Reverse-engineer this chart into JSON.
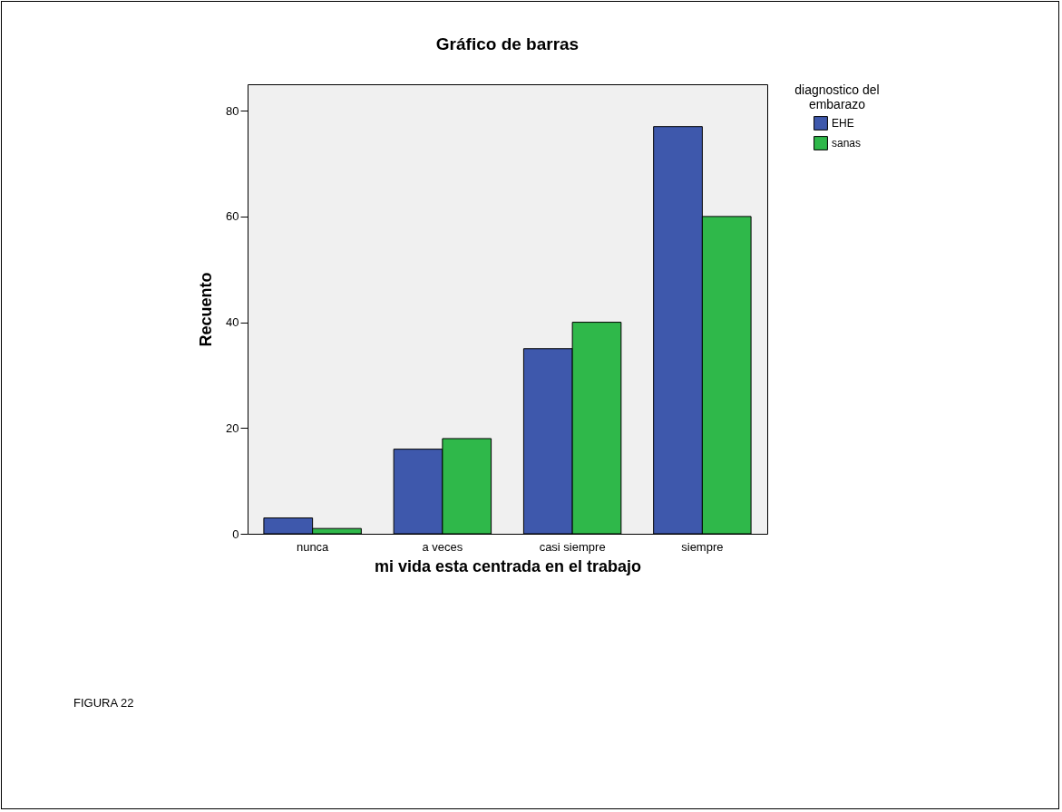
{
  "chart_data": {
    "type": "bar",
    "title": "Gráfico de barras",
    "xlabel": "mi vida esta centrada en el trabajo",
    "ylabel": "Recuento",
    "legend_title": "diagnostico del embarazo",
    "categories": [
      "nunca",
      "a veces",
      "casi siempre",
      "siempre"
    ],
    "series": [
      {
        "name": "EHE",
        "color": "#3e58ac",
        "values": [
          3,
          16,
          35,
          77
        ]
      },
      {
        "name": "sanas",
        "color": "#2fb84a",
        "values": [
          1,
          18,
          40,
          60
        ]
      }
    ],
    "ylim": [
      0,
      85
    ],
    "yticks": [
      0,
      20,
      40,
      60,
      80
    ],
    "grid": false,
    "legend": "top right",
    "annotations": [
      "FIGURA 22"
    ]
  }
}
